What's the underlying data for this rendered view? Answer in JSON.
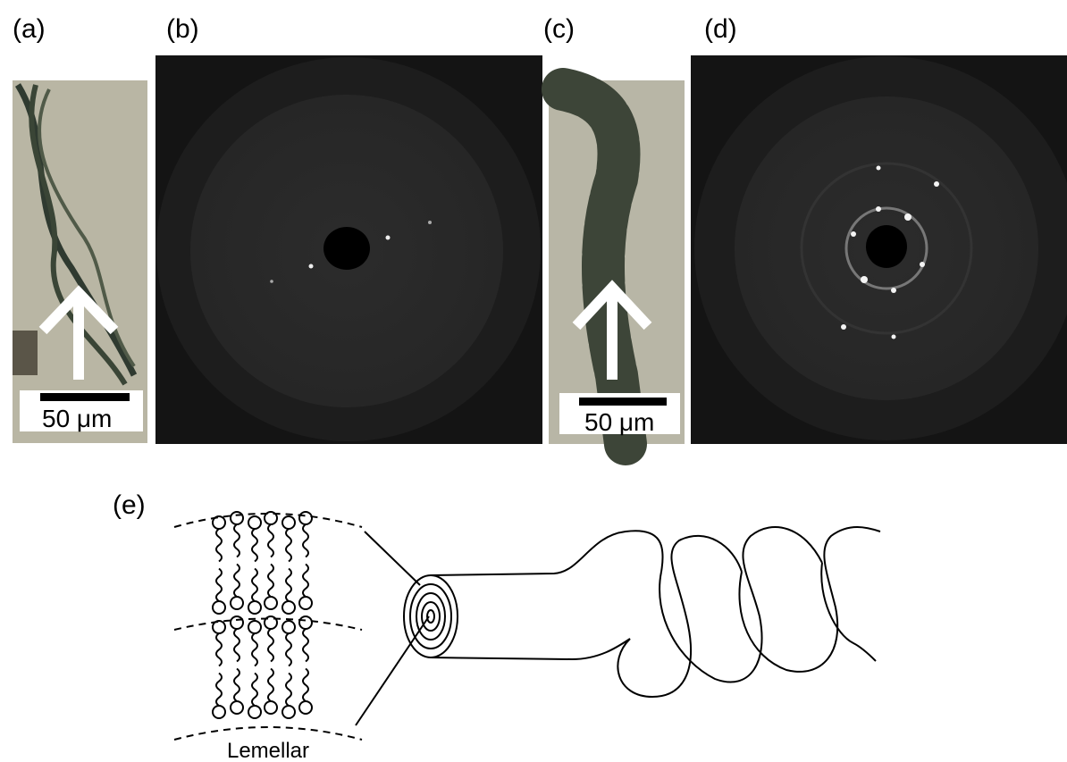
{
  "panels": [
    {
      "label": "(a)"
    },
    {
      "label": "(b)"
    },
    {
      "label": "(c)"
    },
    {
      "label": "(d)"
    }
  ],
  "scale_bars": [
    {
      "label": "50 μm"
    },
    {
      "label": "50 μm"
    }
  ],
  "schematic": {
    "label": "(e)",
    "caption": "Lemellar"
  }
}
